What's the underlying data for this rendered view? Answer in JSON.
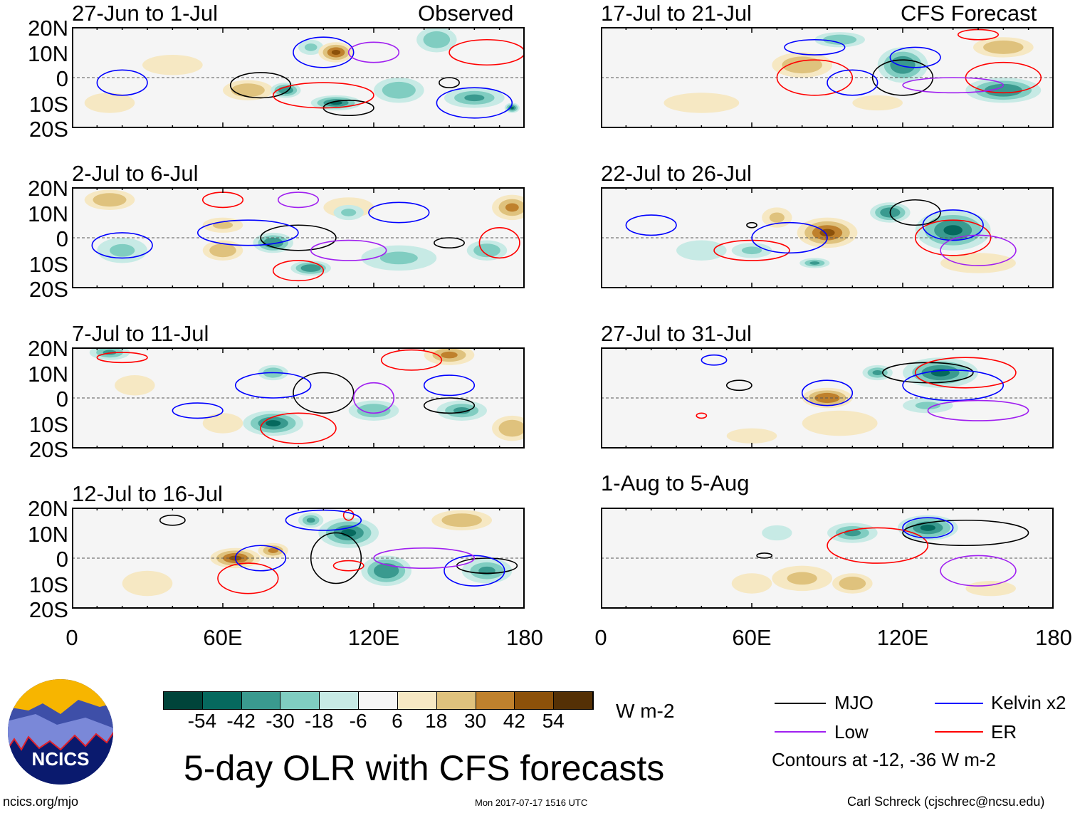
{
  "chart_data": {
    "type": "heatmap",
    "title": "5-day OLR with CFS forecasts",
    "units": "W m-2",
    "lon_ticks": [
      "0",
      "60E",
      "120E",
      "180"
    ],
    "lat_ticks": [
      "20N",
      "10N",
      "0",
      "10S",
      "20S"
    ],
    "lon_range": [
      0,
      180
    ],
    "lat_range": [
      -20,
      20
    ],
    "column_labels": {
      "left": "Observed",
      "right": "CFS Forecast"
    },
    "colorbar": {
      "labels": [
        "-54",
        "-42",
        "-30",
        "-18",
        "-6",
        "6",
        "18",
        "30",
        "42",
        "54"
      ],
      "colors": [
        "#00443a",
        "#06695e",
        "#3a9a8f",
        "#80cdc1",
        "#c7eae5",
        "#f5f5f5",
        "#f6e8c3",
        "#dfc27d",
        "#bf812d",
        "#8c510a",
        "#543005"
      ],
      "unit_label": "W m-2"
    },
    "panels": [
      {
        "label": "27-Jun to 1-Jul",
        "col": 0,
        "row": 0,
        "blobs": [
          [
            105,
            10,
            7,
            4,
            45
          ],
          [
            70,
            -5,
            10,
            4,
            25
          ],
          [
            40,
            5,
            12,
            4,
            15
          ],
          [
            15,
            -10,
            10,
            4,
            10
          ],
          [
            105,
            -10,
            10,
            3,
            -45
          ],
          [
            85,
            -5,
            6,
            3,
            -40
          ],
          [
            160,
            -8,
            12,
            4,
            -30
          ],
          [
            130,
            -5,
            10,
            5,
            -25
          ],
          [
            145,
            15,
            8,
            5,
            -25
          ],
          [
            95,
            12,
            5,
            3,
            -20
          ],
          [
            175,
            -12,
            3,
            2,
            -50
          ]
        ],
        "contours": [
          [
            "MJO",
            75,
            -3,
            12,
            5
          ],
          [
            "MJO",
            110,
            -12,
            10,
            3
          ],
          [
            "MJO",
            150,
            -2,
            4,
            2
          ],
          [
            "ER",
            100,
            -7,
            20,
            5
          ],
          [
            "ER",
            165,
            10,
            15,
            5
          ],
          [
            "Kelvin",
            20,
            -2,
            10,
            5
          ],
          [
            "Kelvin",
            100,
            10,
            12,
            6
          ],
          [
            "Kelvin",
            160,
            -10,
            15,
            6
          ],
          [
            "Low",
            120,
            10,
            10,
            4
          ]
        ]
      },
      {
        "label": "2-Jul to 6-Jul",
        "col": 0,
        "row": 1,
        "blobs": [
          [
            15,
            15,
            10,
            4,
            25
          ],
          [
            60,
            5,
            8,
            3,
            20
          ],
          [
            110,
            12,
            10,
            4,
            15
          ],
          [
            175,
            12,
            8,
            5,
            35
          ],
          [
            60,
            -5,
            8,
            4,
            25
          ],
          [
            80,
            -2,
            8,
            4,
            -40
          ],
          [
            95,
            -12,
            8,
            3,
            -40
          ],
          [
            20,
            -5,
            10,
            5,
            -20
          ],
          [
            130,
            -8,
            15,
            5,
            -20
          ],
          [
            165,
            -5,
            8,
            4,
            -25
          ],
          [
            110,
            10,
            6,
            3,
            -20
          ]
        ],
        "contours": [
          [
            "MJO",
            90,
            0,
            15,
            5
          ],
          [
            "MJO",
            150,
            -2,
            6,
            2
          ],
          [
            "ER",
            90,
            -13,
            10,
            4
          ],
          [
            "ER",
            60,
            15,
            8,
            3
          ],
          [
            "ER",
            170,
            -2,
            8,
            6
          ],
          [
            "Kelvin",
            70,
            2,
            20,
            5
          ],
          [
            "Kelvin",
            20,
            -3,
            12,
            5
          ],
          [
            "Kelvin",
            130,
            10,
            12,
            4
          ],
          [
            "Low",
            110,
            -5,
            15,
            4
          ],
          [
            "Low",
            90,
            15,
            8,
            3
          ]
        ]
      },
      {
        "label": "7-Jul to 11-Jul",
        "col": 0,
        "row": 2,
        "blobs": [
          [
            15,
            18,
            8,
            3,
            -30
          ],
          [
            150,
            17,
            10,
            4,
            35
          ],
          [
            25,
            5,
            8,
            4,
            15
          ],
          [
            80,
            10,
            6,
            3,
            -25
          ],
          [
            80,
            -10,
            12,
            5,
            -50
          ],
          [
            120,
            -5,
            10,
            4,
            -25
          ],
          [
            155,
            -5,
            10,
            4,
            -30
          ],
          [
            175,
            -12,
            8,
            5,
            30
          ],
          [
            60,
            -10,
            8,
            4,
            15
          ]
        ],
        "contours": [
          [
            "MJO",
            100,
            2,
            12,
            8
          ],
          [
            "MJO",
            150,
            -3,
            10,
            3
          ],
          [
            "ER",
            90,
            -12,
            15,
            6
          ],
          [
            "ER",
            135,
            15,
            12,
            4
          ],
          [
            "ER",
            20,
            16,
            10,
            2
          ],
          [
            "Kelvin",
            80,
            5,
            15,
            5
          ],
          [
            "Kelvin",
            150,
            5,
            10,
            4
          ],
          [
            "Kelvin",
            50,
            -5,
            10,
            3
          ],
          [
            "Low",
            120,
            0,
            8,
            6
          ]
        ]
      },
      {
        "label": "12-Jul to 16-Jul",
        "col": 0,
        "row": 3,
        "blobs": [
          [
            65,
            0,
            10,
            4,
            50
          ],
          [
            80,
            3,
            6,
            3,
            35
          ],
          [
            110,
            10,
            12,
            6,
            -50
          ],
          [
            125,
            -5,
            10,
            6,
            -40
          ],
          [
            155,
            15,
            12,
            4,
            30
          ],
          [
            165,
            -5,
            10,
            5,
            -30
          ],
          [
            95,
            15,
            5,
            3,
            -35
          ],
          [
            30,
            -10,
            10,
            5,
            10
          ]
        ],
        "contours": [
          [
            "MJO",
            105,
            0,
            10,
            10
          ],
          [
            "MJO",
            40,
            15,
            5,
            2
          ],
          [
            "MJO",
            165,
            -3,
            12,
            3
          ],
          [
            "ER",
            70,
            -8,
            12,
            6
          ],
          [
            "ER",
            110,
            -3,
            6,
            2
          ],
          [
            "ER",
            110,
            17,
            2,
            2
          ],
          [
            "Kelvin",
            75,
            0,
            10,
            5
          ],
          [
            "Kelvin",
            100,
            15,
            15,
            4
          ],
          [
            "Kelvin",
            160,
            -5,
            12,
            6
          ],
          [
            "Low",
            140,
            0,
            20,
            4
          ]
        ]
      },
      {
        "label": "17-Jul to 21-Jul",
        "col": 1,
        "row": 0,
        "blobs": [
          [
            80,
            5,
            12,
            5,
            30
          ],
          [
            40,
            -10,
            15,
            4,
            10
          ],
          [
            120,
            5,
            10,
            7,
            -40
          ],
          [
            160,
            -5,
            15,
            5,
            -40
          ],
          [
            95,
            15,
            10,
            3,
            -25
          ],
          [
            110,
            -10,
            10,
            3,
            10
          ],
          [
            160,
            12,
            12,
            4,
            25
          ]
        ],
        "contours": [
          [
            "MJO",
            120,
            0,
            12,
            7
          ],
          [
            "ER",
            85,
            0,
            15,
            7
          ],
          [
            "ER",
            160,
            0,
            15,
            6
          ],
          [
            "ER",
            150,
            17,
            8,
            2
          ],
          [
            "Kelvin",
            85,
            12,
            12,
            3
          ],
          [
            "Kelvin",
            100,
            -2,
            10,
            5
          ],
          [
            "Kelvin",
            125,
            8,
            10,
            4
          ],
          [
            "Low",
            140,
            -3,
            20,
            3
          ]
        ]
      },
      {
        "label": "22-Jul to 26-Jul",
        "col": 1,
        "row": 1,
        "blobs": [
          [
            90,
            2,
            12,
            6,
            50
          ],
          [
            70,
            8,
            6,
            4,
            20
          ],
          [
            140,
            3,
            15,
            8,
            -50
          ],
          [
            115,
            10,
            8,
            4,
            -40
          ],
          [
            85,
            -10,
            6,
            2,
            -35
          ],
          [
            60,
            -5,
            8,
            3,
            -20
          ],
          [
            40,
            -5,
            10,
            4,
            -15
          ],
          [
            150,
            -10,
            15,
            4,
            15
          ]
        ],
        "contours": [
          [
            "MJO",
            125,
            10,
            10,
            5
          ],
          [
            "MJO",
            60,
            5,
            2,
            1
          ],
          [
            "ER",
            60,
            -5,
            15,
            4
          ],
          [
            "ER",
            140,
            0,
            15,
            7
          ],
          [
            "Kelvin",
            75,
            0,
            15,
            6
          ],
          [
            "Kelvin",
            20,
            5,
            10,
            4
          ],
          [
            "Kelvin",
            140,
            5,
            12,
            6
          ],
          [
            "Low",
            150,
            -5,
            15,
            6
          ]
        ]
      },
      {
        "label": "27-Jul to 31-Jul",
        "col": 1,
        "row": 2,
        "blobs": [
          [
            90,
            0,
            10,
            4,
            40
          ],
          [
            135,
            10,
            15,
            6,
            -50
          ],
          [
            110,
            10,
            6,
            3,
            -30
          ],
          [
            95,
            -10,
            15,
            5,
            15
          ],
          [
            60,
            -15,
            10,
            3,
            10
          ],
          [
            130,
            -3,
            10,
            3,
            -20
          ]
        ],
        "contours": [
          [
            "MJO",
            130,
            10,
            18,
            4
          ],
          [
            "MJO",
            55,
            5,
            5,
            2
          ],
          [
            "ER",
            145,
            10,
            20,
            6
          ],
          [
            "ER",
            40,
            -7,
            2,
            1
          ],
          [
            "Kelvin",
            90,
            2,
            10,
            5
          ],
          [
            "Kelvin",
            140,
            5,
            20,
            6
          ],
          [
            "Kelvin",
            45,
            15,
            5,
            2
          ],
          [
            "Low",
            150,
            -5,
            20,
            4
          ]
        ]
      },
      {
        "label": "1-Aug to 5-Aug",
        "col": 1,
        "row": 3,
        "blobs": [
          [
            130,
            12,
            12,
            5,
            -50
          ],
          [
            100,
            10,
            10,
            4,
            -30
          ],
          [
            80,
            -8,
            12,
            5,
            20
          ],
          [
            100,
            -10,
            8,
            4,
            30
          ],
          [
            60,
            -10,
            8,
            4,
            15
          ],
          [
            155,
            -12,
            10,
            3,
            15
          ],
          [
            70,
            10,
            6,
            3,
            -15
          ]
        ],
        "contours": [
          [
            "MJO",
            145,
            10,
            25,
            5
          ],
          [
            "MJO",
            65,
            1,
            3,
            1
          ],
          [
            "ER",
            110,
            5,
            20,
            7
          ],
          [
            "Kelvin",
            130,
            12,
            10,
            4
          ],
          [
            "Low",
            150,
            -5,
            15,
            6
          ]
        ]
      }
    ]
  },
  "legend": {
    "items": [
      {
        "label": "MJO",
        "color": "#000000"
      },
      {
        "label": "Kelvin x2",
        "color": "#0000ff"
      },
      {
        "label": "Low",
        "color": "#a020f0"
      },
      {
        "label": "ER",
        "color": "#ff0000"
      }
    ],
    "note": "Contours at -12, -36 W m-2"
  },
  "logo_text": "NCICS",
  "footer": {
    "left": "ncics.org/mjo",
    "center": "Mon 2017-07-17 1516 UTC",
    "right": "Carl Schreck (cjschrec@ncsu.edu)"
  }
}
